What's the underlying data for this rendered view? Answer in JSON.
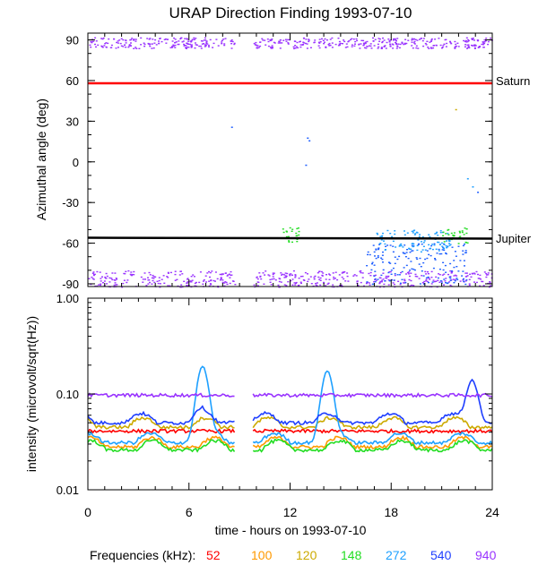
{
  "chart_data": [
    {
      "type": "scatter",
      "title": "URAP Direction Finding  1993-07-10",
      "ylabel": "Azimuthal angle (deg)",
      "xlim": [
        0,
        24
      ],
      "ylim": [
        -92,
        95
      ],
      "yticks": [
        90,
        60,
        30,
        0,
        -30,
        -60,
        -90
      ],
      "reference_lines": [
        {
          "name": "Saturn",
          "y": 58,
          "color": "#ff0000"
        },
        {
          "name": "Jupiter",
          "y": -56,
          "color": "#000000"
        }
      ],
      "data_gap_hours": [
        8.7,
        9.8
      ],
      "series": [
        {
          "color": "#9933ff",
          "bands": [
            [
              0,
              8.7,
              84,
              92
            ],
            [
              9.8,
              24,
              84,
              92
            ],
            [
              0,
              8.7,
              -92,
              -80
            ],
            [
              9.8,
              24,
              -92,
              -80
            ]
          ]
        },
        {
          "color": "#1f5fff",
          "bands": [
            [
              16.5,
              22.5,
              -90,
              -60
            ]
          ]
        },
        {
          "color": "#1ea0ff",
          "bands": [
            [
              17,
              21.5,
              -66,
              -50
            ]
          ]
        },
        {
          "color": "#22dd22",
          "bands": [
            [
              11.5,
              12.5,
              -60,
              -48
            ],
            [
              21,
              22.5,
              -60,
              -48
            ]
          ]
        }
      ]
    },
    {
      "type": "line",
      "xlabel": "time - hours on 1993-07-10",
      "ylabel": "intensity (microvolt/sqrt(Hz))",
      "xlim": [
        0,
        24
      ],
      "ylim": [
        0.01,
        1.0
      ],
      "yscale": "log",
      "ytick_labels": [
        "1.00",
        "0.10",
        "0.01"
      ],
      "xticks": [
        0,
        6,
        12,
        18,
        24
      ],
      "data_gap_hours": [
        8.7,
        9.8
      ],
      "series": [
        {
          "name": "52",
          "color": "#ff0000",
          "level": 0.041
        },
        {
          "name": "100",
          "color": "#ff9900",
          "level": 0.028
        },
        {
          "name": "120",
          "color": "#ccaa00",
          "level": 0.045
        },
        {
          "name": "148",
          "color": "#22dd22",
          "level": 0.026
        },
        {
          "name": "272",
          "color": "#1ea0ff",
          "level": 0.031
        },
        {
          "name": "540",
          "color": "#1f3fff",
          "level": 0.05
        },
        {
          "name": "940",
          "color": "#9933ff",
          "level": 0.097
        }
      ],
      "peaks": [
        {
          "t": 6.8,
          "value": 0.19,
          "color": "#1ea0ff"
        },
        {
          "t": 6.7,
          "value": 0.06,
          "color": "#1f3fff"
        },
        {
          "t": 14.2,
          "value": 0.17,
          "color": "#1ea0ff"
        },
        {
          "t": 22.8,
          "value": 0.14,
          "color": "#1f3fff"
        }
      ]
    }
  ],
  "legend": {
    "label": "Frequencies (kHz):",
    "items": [
      {
        "text": "52",
        "color": "#ff0000"
      },
      {
        "text": "100",
        "color": "#ff9900"
      },
      {
        "text": "120",
        "color": "#ccaa00"
      },
      {
        "text": "148",
        "color": "#22dd22"
      },
      {
        "text": "272",
        "color": "#1ea0ff"
      },
      {
        "text": "540",
        "color": "#1f3fff"
      },
      {
        "text": "940",
        "color": "#9933ff"
      }
    ]
  }
}
